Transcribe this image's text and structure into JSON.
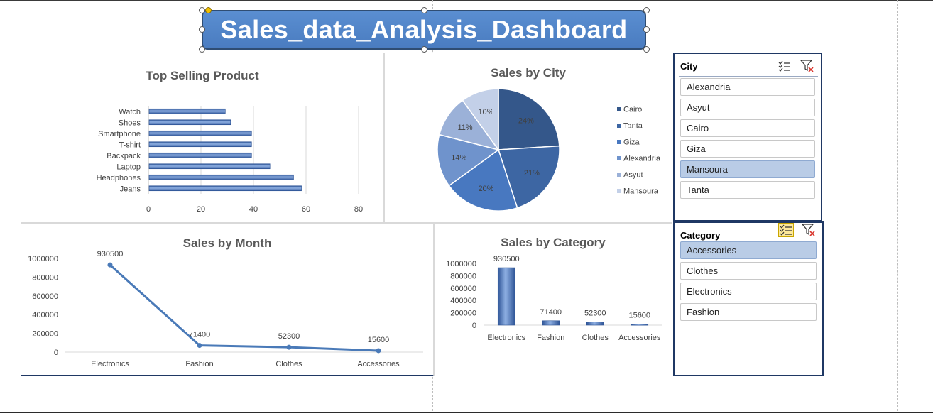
{
  "title": "Sales_data_Analysis_Dashboard",
  "colors": {
    "title_bg": "#4f81c4",
    "bar": "#4472c4",
    "line": "#4a7ab8",
    "slicer_selected": "#b9cce6",
    "pie": [
      "#34578a",
      "#3d66a3",
      "#4878c0",
      "#6f93cc",
      "#9bb1d8",
      "#c3d0e8"
    ]
  },
  "top_selling": {
    "title": "Top Selling Product",
    "chart_data": {
      "type": "bar",
      "orientation": "horizontal",
      "categories": [
        "Watch",
        "Shoes",
        "Smartphone",
        "T-shirt",
        "Backpack",
        "Laptop",
        "Headphones",
        "Jeans"
      ],
      "values": [
        29,
        31,
        39,
        39,
        39,
        46,
        55,
        58
      ],
      "xlim": [
        0,
        80
      ],
      "xticks": [
        "0",
        "20",
        "40",
        "60",
        "80"
      ],
      "grid": true
    }
  },
  "sales_by_city": {
    "title": "Sales by City",
    "chart_data": {
      "type": "pie",
      "labels": [
        "Cairo",
        "Tanta",
        "Giza",
        "Alexandria",
        "Asyut",
        "Mansoura"
      ],
      "values": [
        24,
        21,
        20,
        14,
        11,
        10
      ],
      "data_labels": [
        "24%",
        "21%",
        "20%",
        "14%",
        "11%",
        "10%"
      ],
      "legend": "right"
    }
  },
  "sales_by_month": {
    "title": "Sales by Month",
    "chart_data": {
      "type": "line",
      "categories": [
        "Electronics",
        "Fashion",
        "Clothes",
        "Accessories"
      ],
      "values": [
        930500,
        71400,
        52300,
        15600
      ],
      "data_labels": [
        "930500",
        "71400",
        "52300",
        "15600"
      ],
      "ylim": [
        0,
        1000000
      ],
      "yticks": [
        "0",
        "200000",
        "400000",
        "600000",
        "800000",
        "1000000"
      ]
    }
  },
  "sales_by_category": {
    "title": "Sales by Category",
    "chart_data": {
      "type": "bar",
      "categories": [
        "Electronics",
        "Fashion",
        "Clothes",
        "Accessories"
      ],
      "values": [
        930500,
        71400,
        52300,
        15600
      ],
      "data_labels": [
        "930500",
        "71400",
        "52300",
        "15600"
      ],
      "ylim": [
        0,
        1000000
      ],
      "yticks": [
        "0",
        "200000",
        "400000",
        "600000",
        "800000",
        "1000000"
      ]
    }
  },
  "city_slicer": {
    "header": "City",
    "items": [
      {
        "label": "Alexandria",
        "selected": false
      },
      {
        "label": "Asyut",
        "selected": false
      },
      {
        "label": "Cairo",
        "selected": false
      },
      {
        "label": "Giza",
        "selected": false
      },
      {
        "label": "Mansoura",
        "selected": true
      },
      {
        "label": "Tanta",
        "selected": false
      }
    ]
  },
  "category_slicer": {
    "header": "Category",
    "items": [
      {
        "label": "Accessories",
        "selected": true
      },
      {
        "label": "Clothes",
        "selected": false
      },
      {
        "label": "Electronics",
        "selected": false
      },
      {
        "label": "Fashion",
        "selected": false
      }
    ]
  }
}
